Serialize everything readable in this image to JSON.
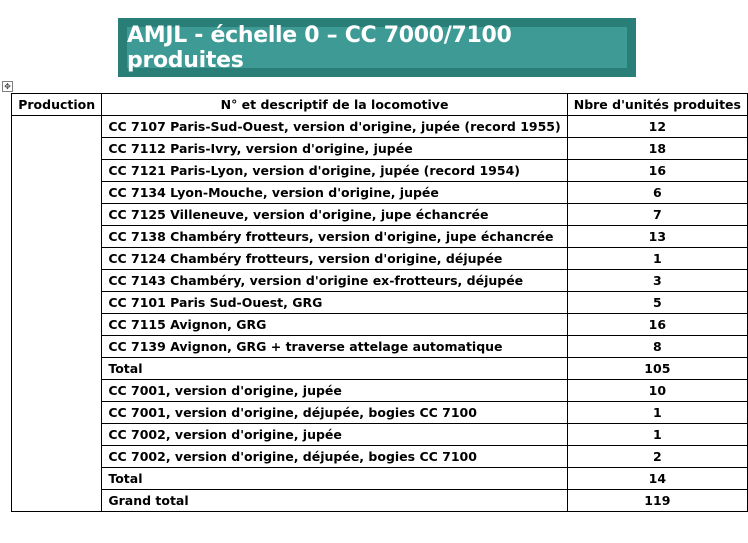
{
  "title": "AMJL - échelle 0 – CC 7000/7100 produites",
  "table": {
    "headers": [
      "Production",
      "N° et descriptif de la locomotive",
      "Nbre d'unités produites"
    ],
    "group1": [
      {
        "desc": "CC 7107 Paris-Sud-Ouest, version d'origine, jupée (record 1955)",
        "qty": "12"
      },
      {
        "desc": "CC 7112 Paris-Ivry, version d'origine, jupée",
        "qty": "18"
      },
      {
        "desc": "CC 7121 Paris-Lyon, version d'origine, jupée (record 1954)",
        "qty": "16"
      },
      {
        "desc": "CC 7134 Lyon-Mouche, version d'origine, jupée",
        "qty": "6"
      },
      {
        "desc": "CC 7125 Villeneuve, version d'origine, jupe échancrée",
        "qty": "7"
      },
      {
        "desc": "CC 7138 Chambéry frotteurs, version d'origine, jupe échancrée",
        "qty": "13"
      },
      {
        "desc": "CC 7124 Chambéry frotteurs, version d'origine, déjupée",
        "qty": "1"
      },
      {
        "desc": "CC 7143 Chambéry, version d'origine ex-frotteurs, déjupée",
        "qty": "3"
      },
      {
        "desc": "CC 7101 Paris Sud-Ouest, GRG",
        "qty": "5"
      },
      {
        "desc": "CC 7115 Avignon, GRG",
        "qty": "16"
      },
      {
        "desc": "CC 7139 Avignon, GRG + traverse attelage automatique",
        "qty": "8"
      }
    ],
    "total1": {
      "label": "Total",
      "qty": "105"
    },
    "group2": [
      {
        "desc": "CC 7001, version d'origine, jupée",
        "qty": "10"
      },
      {
        "desc": "CC 7001, version d'origine, déjupée, bogies CC 7100",
        "qty": "1"
      },
      {
        "desc": "CC 7002, version d'origine, jupée",
        "qty": "1"
      },
      {
        "desc": "CC 7002, version d'origine, déjupée, bogies CC 7100",
        "qty": "2"
      }
    ],
    "total2": {
      "label": "Total",
      "qty": "14"
    },
    "grand_total": {
      "label": "Grand total",
      "qty": "119"
    }
  }
}
